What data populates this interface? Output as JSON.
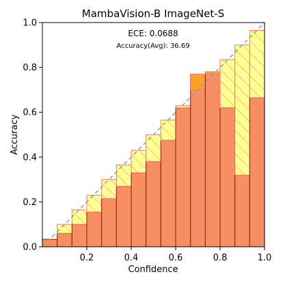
{
  "chart_data": {
    "type": "bar",
    "title": "MambaVision-B  ImageNet-S",
    "xlabel": "Confidence",
    "ylabel": "Accuracy",
    "xlim": [
      0.0,
      1.0
    ],
    "ylim": [
      0.0,
      1.0
    ],
    "x_ticks": [
      "0.2",
      "0.4",
      "0.6",
      "0.8",
      "1.0"
    ],
    "y_ticks": [
      "0.0",
      "0.2",
      "0.4",
      "0.6",
      "0.8",
      "1.0"
    ],
    "annotations": {
      "ece": "ECE: 0.0688",
      "accuracy": "Accuracy(Avg): 36.69"
    },
    "bin_width": 0.0667,
    "bin_starts": [
      0.0,
      0.0667,
      0.1333,
      0.2,
      0.2667,
      0.3333,
      0.4,
      0.4667,
      0.5333,
      0.6,
      0.6667,
      0.7333,
      0.8,
      0.8667,
      0.9333
    ],
    "accuracy": [
      0.033,
      0.06,
      0.1,
      0.155,
      0.215,
      0.27,
      0.33,
      0.38,
      0.475,
      0.62,
      0.77,
      0.78,
      0.62,
      0.32,
      0.665
    ],
    "confidence": [
      0.033,
      0.1,
      0.165,
      0.23,
      0.3,
      0.365,
      0.43,
      0.5,
      0.565,
      0.63,
      0.7,
      0.77,
      0.835,
      0.9,
      0.965
    ],
    "grid": false,
    "reference_line": "diagonal dashed",
    "colors": {
      "accuracy_fill": "#f88f62",
      "accuracy_edge": "#8b1a00",
      "gap_fill": "#ffff80",
      "gap_edge": "#f07878",
      "overconfident_overlap": "#f8a820",
      "diagonal": "#999999"
    }
  }
}
